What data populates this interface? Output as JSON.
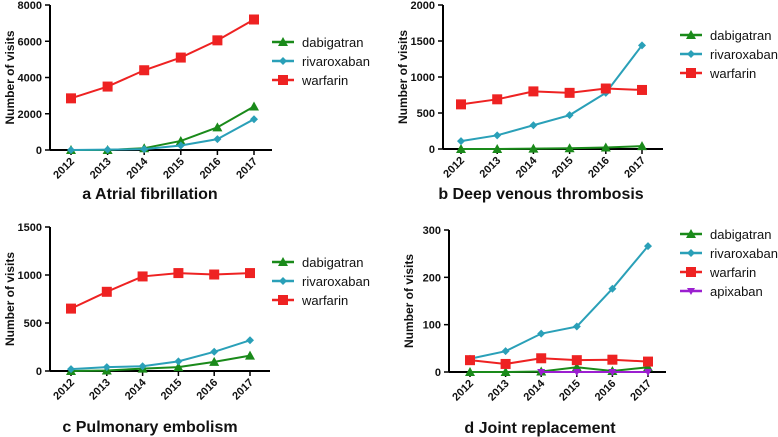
{
  "chart_data": [
    {
      "type": "line",
      "title": "a Atrial fibrillation",
      "xlabel": "",
      "ylabel": "Number of visits",
      "x": [
        "2012",
        "2013",
        "2014",
        "2015",
        "2016",
        "2017"
      ],
      "ylim": [
        0,
        8000
      ],
      "yticks": [
        0,
        2000,
        4000,
        6000,
        8000
      ],
      "legend_position": "right",
      "series": [
        {
          "name": "dabigatran",
          "color": "#1a8a1a",
          "marker": "triangle-up",
          "values": [
            0,
            0,
            100,
            500,
            1250,
            2400
          ]
        },
        {
          "name": "rivaroxaban",
          "color": "#2aa0b8",
          "marker": "diamond",
          "values": [
            0,
            20,
            50,
            250,
            600,
            1700
          ]
        },
        {
          "name": "warfarin",
          "color": "#ee2222",
          "marker": "square",
          "values": [
            2850,
            3500,
            4400,
            5100,
            6050,
            7200
          ]
        }
      ]
    },
    {
      "type": "line",
      "title": "b Deep venous thrombosis",
      "xlabel": "",
      "ylabel": "Number of visits",
      "x": [
        "2012",
        "2013",
        "2014",
        "2015",
        "2016",
        "2017"
      ],
      "ylim": [
        0,
        2000
      ],
      "yticks": [
        0,
        500,
        1000,
        1500,
        2000
      ],
      "legend_position": "right",
      "series": [
        {
          "name": "dabigatran",
          "color": "#1a8a1a",
          "marker": "triangle-up",
          "values": [
            0,
            0,
            5,
            10,
            20,
            40
          ]
        },
        {
          "name": "rivaroxaban",
          "color": "#2aa0b8",
          "marker": "diamond",
          "values": [
            110,
            190,
            330,
            470,
            780,
            1440
          ]
        },
        {
          "name": "warfarin",
          "color": "#ee2222",
          "marker": "square",
          "values": [
            620,
            690,
            800,
            780,
            840,
            820
          ]
        }
      ]
    },
    {
      "type": "line",
      "title": "c Pulmonary embolism",
      "xlabel": "",
      "ylabel": "Number of visits",
      "x": [
        "2012",
        "2013",
        "2014",
        "2015",
        "2016",
        "2017"
      ],
      "ylim": [
        0,
        1500
      ],
      "yticks": [
        0,
        500,
        1000,
        1500
      ],
      "legend_position": "right",
      "series": [
        {
          "name": "dabigatran",
          "color": "#1a8a1a",
          "marker": "triangle-up",
          "values": [
            0,
            5,
            25,
            40,
            95,
            160
          ]
        },
        {
          "name": "rivaroxaban",
          "color": "#2aa0b8",
          "marker": "diamond",
          "values": [
            20,
            40,
            50,
            100,
            200,
            320
          ]
        },
        {
          "name": "warfarin",
          "color": "#ee2222",
          "marker": "square",
          "values": [
            650,
            825,
            985,
            1020,
            1005,
            1020
          ]
        }
      ]
    },
    {
      "type": "line",
      "title": "d Joint replacement",
      "xlabel": "",
      "ylabel": "Number of visits",
      "x": [
        "2012",
        "2013",
        "2014",
        "2015",
        "2016",
        "2017"
      ],
      "ylim": [
        0,
        300
      ],
      "yticks": [
        0,
        100,
        200,
        300
      ],
      "legend_position": "right",
      "series": [
        {
          "name": "dabigatran",
          "color": "#1a8a1a",
          "marker": "triangle-up",
          "values": [
            0,
            0,
            1,
            10,
            2,
            10
          ]
        },
        {
          "name": "rivaroxaban",
          "color": "#2aa0b8",
          "marker": "diamond",
          "values": [
            28,
            44,
            81,
            96,
            176,
            266
          ]
        },
        {
          "name": "warfarin",
          "color": "#ee2222",
          "marker": "square",
          "values": [
            25,
            17,
            29,
            25,
            26,
            22
          ]
        },
        {
          "name": "apixaban",
          "color": "#9b1fd0",
          "marker": "triangle-down",
          "values": [
            null,
            null,
            0,
            0,
            0,
            0
          ]
        }
      ]
    }
  ]
}
